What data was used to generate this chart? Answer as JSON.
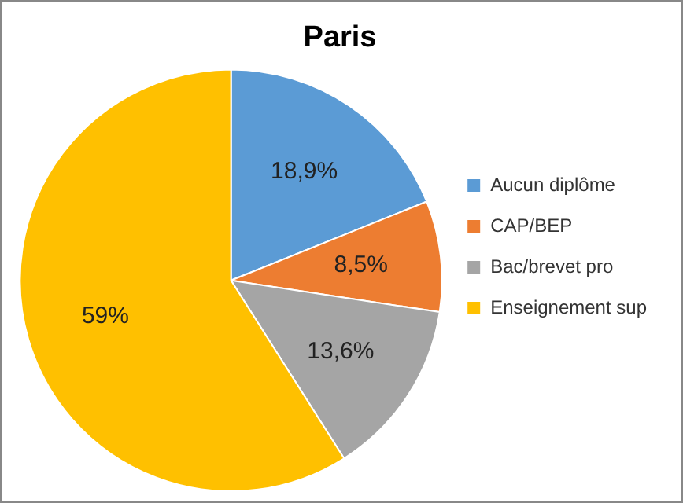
{
  "chart_data": {
    "type": "pie",
    "title": "Paris",
    "categories": [
      "Aucun diplôme",
      "CAP/BEP",
      "Bac/brevet pro",
      "Enseignement sup"
    ],
    "values": [
      18.9,
      8.5,
      13.6,
      59
    ],
    "value_labels": [
      "18,9%",
      "8,5%",
      "13,6%",
      "59%"
    ],
    "colors": [
      "#5b9bd5",
      "#ed7d31",
      "#a5a5a5",
      "#ffc000"
    ],
    "legend": "right"
  }
}
